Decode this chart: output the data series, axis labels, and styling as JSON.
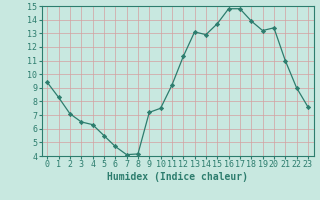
{
  "x": [
    0,
    1,
    2,
    3,
    4,
    5,
    6,
    7,
    8,
    9,
    10,
    11,
    12,
    13,
    14,
    15,
    16,
    17,
    18,
    19,
    20,
    21,
    22,
    23
  ],
  "y": [
    9.4,
    8.3,
    7.1,
    6.5,
    6.3,
    5.5,
    4.7,
    4.1,
    4.15,
    7.2,
    7.5,
    9.2,
    11.3,
    13.1,
    12.9,
    13.7,
    14.8,
    14.8,
    13.9,
    13.2,
    13.4,
    11.0,
    9.0,
    7.6
  ],
  "line_color": "#2d7d6e",
  "marker": "D",
  "marker_size": 2.2,
  "bg_color": "#c8e8e0",
  "grid_color": "#d4a0a0",
  "xlabel": "Humidex (Indice chaleur)",
  "ylim": [
    4,
    15
  ],
  "xlim": [
    -0.5,
    23.5
  ],
  "yticks": [
    4,
    5,
    6,
    7,
    8,
    9,
    10,
    11,
    12,
    13,
    14,
    15
  ],
  "xticks": [
    0,
    1,
    2,
    3,
    4,
    5,
    6,
    7,
    8,
    9,
    10,
    11,
    12,
    13,
    14,
    15,
    16,
    17,
    18,
    19,
    20,
    21,
    22,
    23
  ],
  "axis_color": "#2d7d6e",
  "tick_color": "#2d7d6e",
  "label_color": "#2d7d6e",
  "tick_fontsize": 6.0,
  "xlabel_fontsize": 7.0
}
